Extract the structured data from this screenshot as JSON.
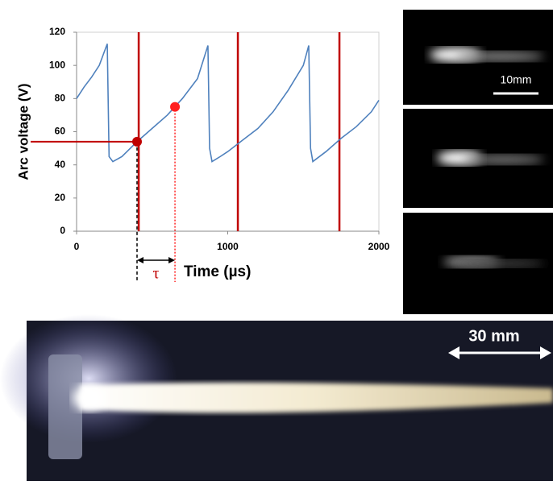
{
  "chart_data": {
    "type": "line",
    "ylabel": "Arc voltage (V)",
    "xlabel": "Time (µs)",
    "x": [
      0,
      50,
      100,
      150,
      203,
      215,
      240,
      300,
      400,
      500,
      600,
      700,
      800,
      869,
      880,
      896,
      950,
      1000,
      1100,
      1200,
      1300,
      1400,
      1500,
      1536,
      1548,
      1563,
      1650,
      1750,
      1850,
      1950,
      2000
    ],
    "series": [
      {
        "color": "#4f81bd",
        "values": [
          80,
          87,
          93,
          100,
          113,
          45,
          42,
          45,
          54,
          62,
          70,
          80,
          92,
          112,
          50,
          42,
          45,
          48,
          55,
          62,
          72,
          85,
          100,
          112,
          50,
          42,
          48,
          56,
          63,
          72,
          79
        ]
      }
    ],
    "pulses": {
      "x": [
        411,
        1067,
        1739
      ],
      "color": "#c00000"
    },
    "markers": {
      "x": [
        400,
        651
      ],
      "y": [
        54,
        75
      ],
      "colors": [
        "#c00000",
        "#ff2020"
      ]
    },
    "interval_label": "τ",
    "xlim": [
      0,
      2000
    ],
    "ylim": [
      0,
      120
    ],
    "xticks": [
      0,
      1000,
      2000
    ],
    "yticks": [
      0,
      20,
      40,
      60,
      80,
      100,
      120
    ]
  },
  "images": {
    "side_scale": "10mm",
    "photo_scale": "30 mm"
  }
}
